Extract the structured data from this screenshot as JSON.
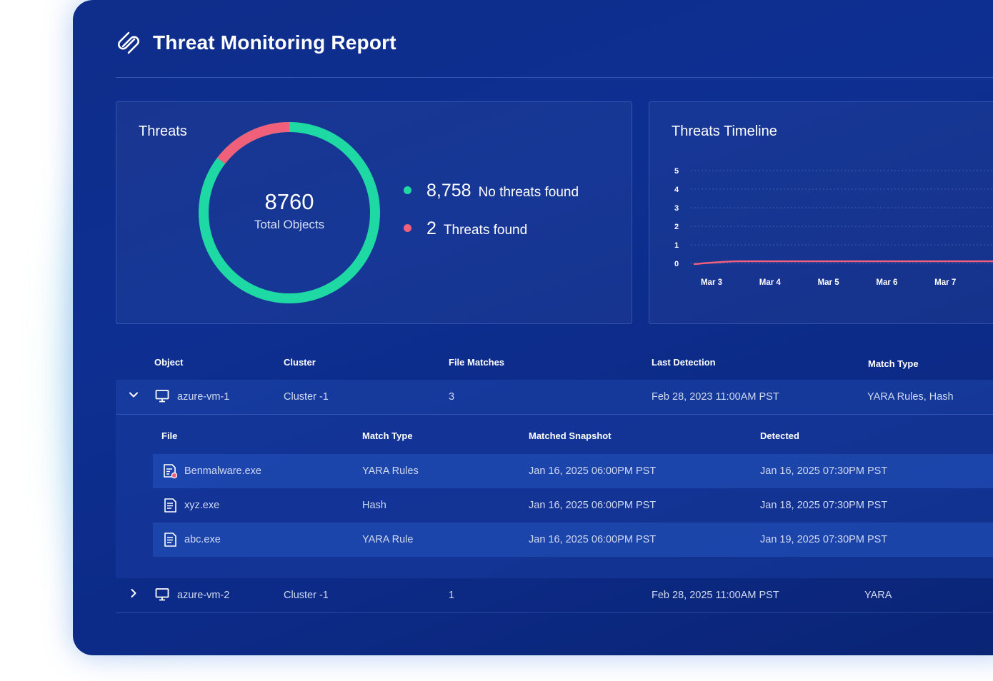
{
  "app": {
    "title": "Threat Monitoring Report"
  },
  "summary": {
    "panel_title": "Threats",
    "total": "8760",
    "total_label": "Total Objects",
    "items": [
      {
        "count": "8,758",
        "label": "No threats found",
        "color": "#1fd9a5"
      },
      {
        "count": "2",
        "label": "Threats found",
        "color": "#f0607a"
      }
    ]
  },
  "timeline": {
    "panel_title": "Threats Timeline"
  },
  "chart_data": {
    "type": "line",
    "title": "Threats Timeline",
    "categories": [
      "Mar 3",
      "Mar 4",
      "Mar 5",
      "Mar 6",
      "Mar 7"
    ],
    "yticks": [
      "0",
      "1",
      "2",
      "3",
      "4",
      "5"
    ],
    "ylim": [
      0,
      5
    ],
    "series": [
      {
        "values": [
          0,
          0,
          0,
          0,
          0
        ],
        "color": "#f0607a"
      }
    ],
    "grid": true
  },
  "table": {
    "columns": [
      "Object",
      "Cluster",
      "File Matches",
      "Last Detection",
      "Match Type"
    ],
    "rows": [
      {
        "object": "azure-vm-1",
        "cluster": "Cluster -1",
        "matches": "3",
        "last": "Feb 28, 2023 11:00AM PST",
        "type": "YARA Rules, Hash"
      },
      {
        "object": "azure-vm-2",
        "cluster": "Cluster -1",
        "matches": "1",
        "last": "Feb 28, 2025 11:00AM PST",
        "type": "YARA"
      }
    ],
    "subtable": {
      "columns": [
        "File",
        "Match Type",
        "Matched Snapshot",
        "Detected"
      ],
      "rows": [
        {
          "file": "Benmalware.exe",
          "type": "YARA Rules",
          "snapshot": "Jan 16, 2025 06:00PM PST",
          "detected": "Jan 16, 2025 07:30PM PST"
        },
        {
          "file": "xyz.exe",
          "type": "Hash",
          "snapshot": "Jan 16, 2025 06:00PM PST",
          "detected": "Jan 18, 2025 07:30PM PST"
        },
        {
          "file": "abc.exe",
          "type": "YARA Rule",
          "snapshot": "Jan 16, 2025 06:00PM PST",
          "detected": "Jan 19, 2025 07:30PM PST"
        }
      ]
    }
  },
  "colors": {
    "safe": "#1fd9a5",
    "threat": "#f0607a"
  }
}
